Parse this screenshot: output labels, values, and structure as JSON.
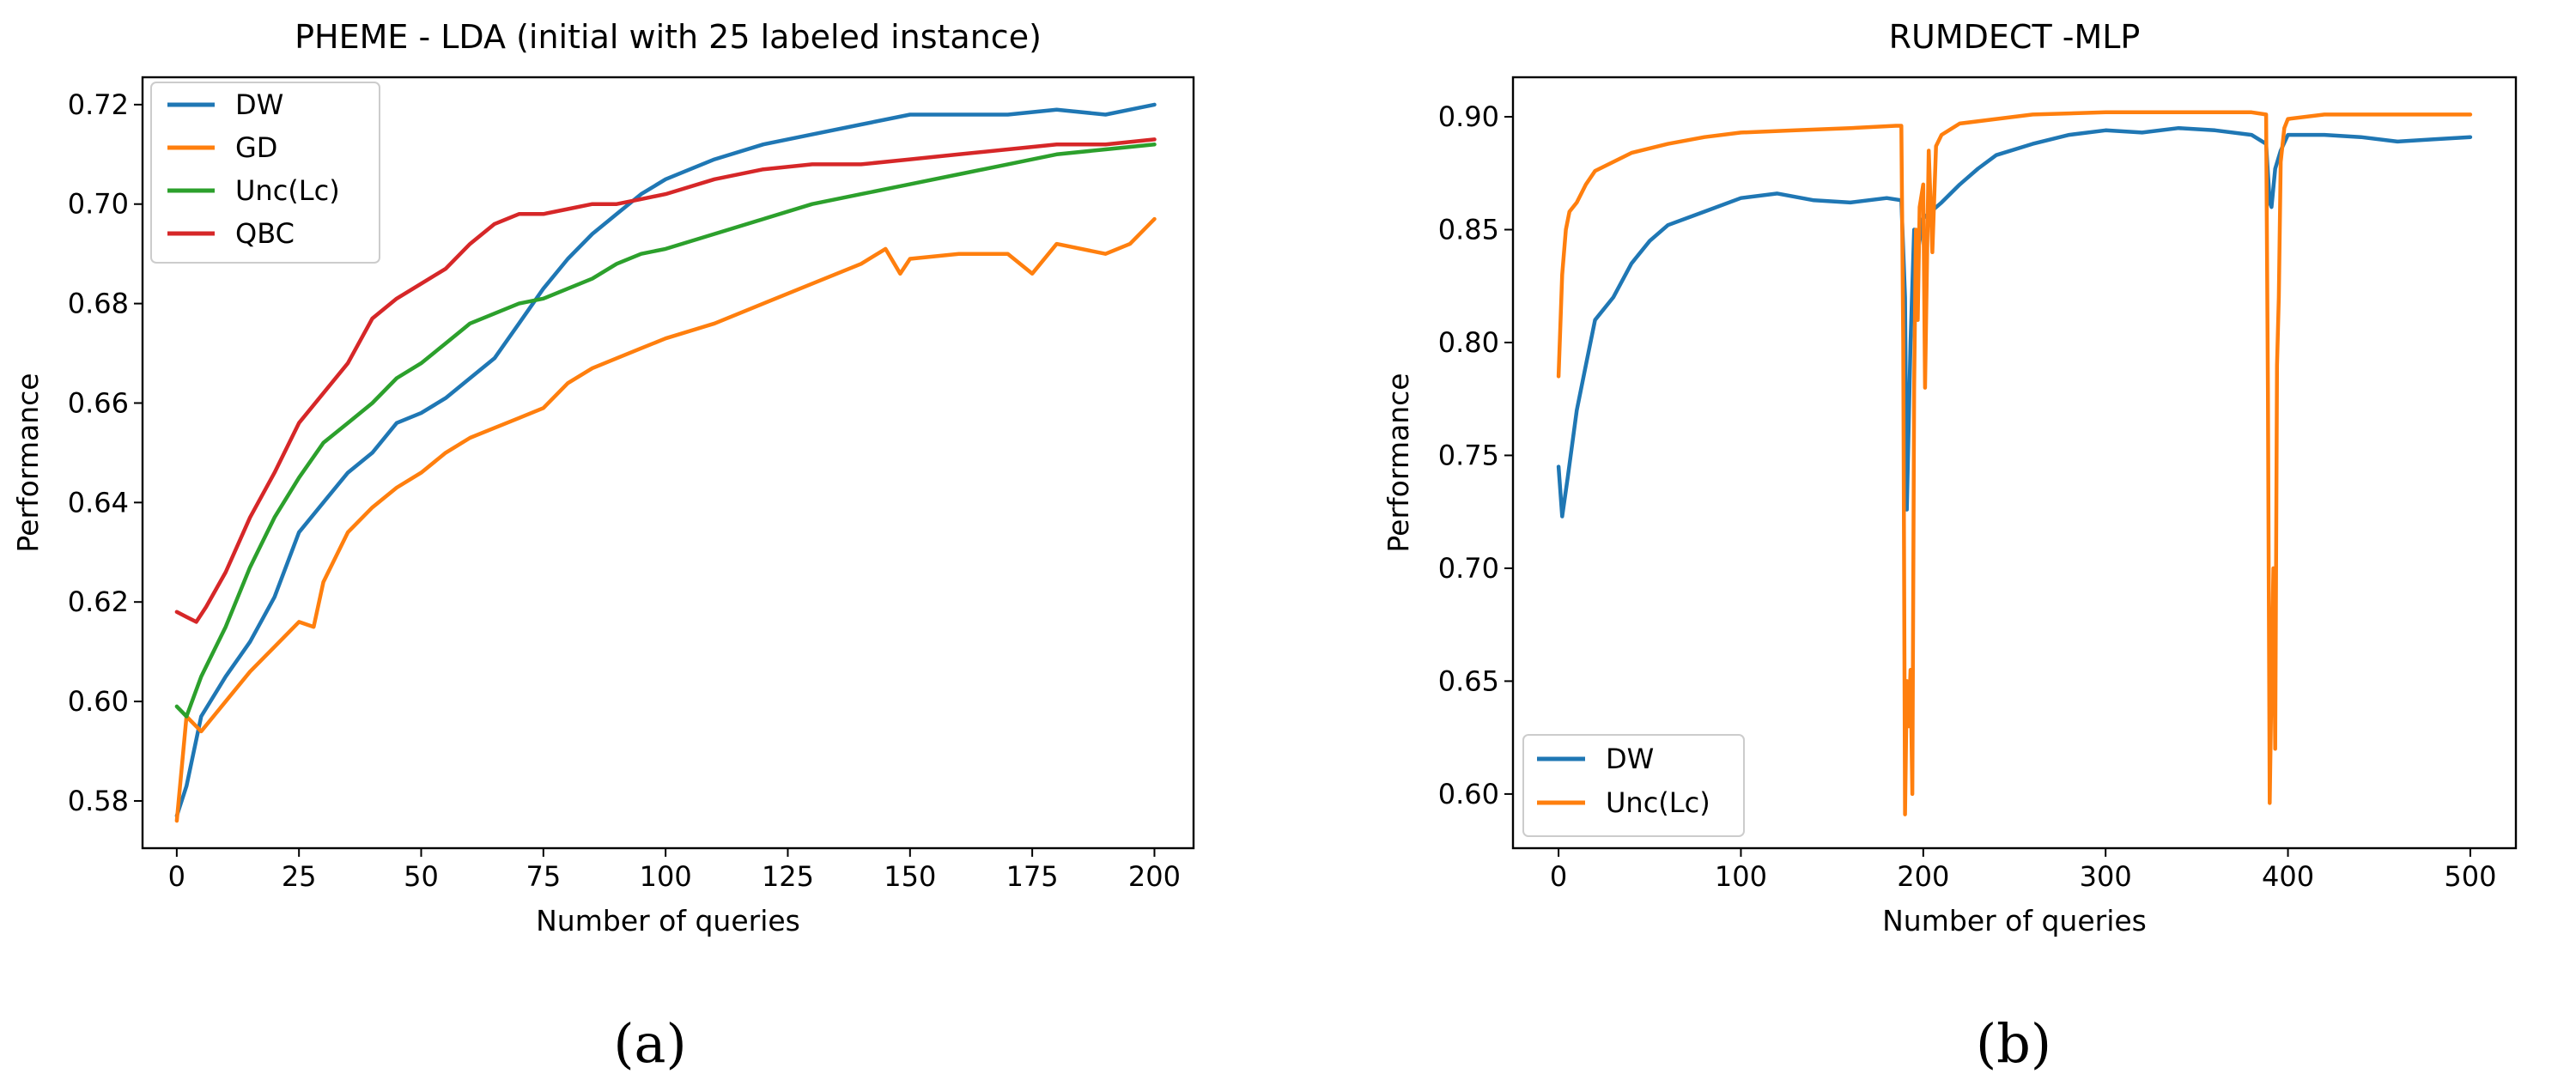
{
  "chart_data": [
    {
      "type": "line",
      "panel_label": "(a)",
      "title": "PHEME - LDA (initial with 25 labeled instance)",
      "xlabel": "Number of queries",
      "ylabel": "Performance",
      "xlim": [
        -7,
        208
      ],
      "ylim": [
        0.5705,
        0.7255
      ],
      "xticks": [
        0,
        25,
        50,
        75,
        100,
        125,
        150,
        175,
        200
      ],
      "xtick_labels": [
        "0",
        "25",
        "50",
        "75",
        "100",
        "125",
        "150",
        "175",
        "200"
      ],
      "yticks": [
        0.58,
        0.6,
        0.62,
        0.64,
        0.66,
        0.68,
        0.7,
        0.72
      ],
      "ytick_labels": [
        "0.58",
        "0.60",
        "0.62",
        "0.64",
        "0.66",
        "0.68",
        "0.70",
        "0.72"
      ],
      "legend_position": "upper-left",
      "series": [
        {
          "name": "DW",
          "color": "#1f77b4",
          "x": [
            0,
            2,
            5,
            10,
            15,
            20,
            25,
            30,
            35,
            40,
            45,
            50,
            55,
            60,
            65,
            70,
            75,
            80,
            85,
            90,
            95,
            100,
            105,
            110,
            120,
            130,
            140,
            150,
            160,
            170,
            180,
            190,
            200
          ],
          "y": [
            0.577,
            0.583,
            0.597,
            0.605,
            0.612,
            0.621,
            0.634,
            0.64,
            0.646,
            0.65,
            0.656,
            0.658,
            0.661,
            0.665,
            0.669,
            0.676,
            0.683,
            0.689,
            0.694,
            0.698,
            0.702,
            0.705,
            0.707,
            0.709,
            0.712,
            0.714,
            0.716,
            0.718,
            0.718,
            0.718,
            0.719,
            0.718,
            0.72
          ]
        },
        {
          "name": "GD",
          "color": "#ff7f0e",
          "x": [
            0,
            2,
            5,
            10,
            15,
            20,
            25,
            28,
            30,
            35,
            40,
            45,
            50,
            55,
            60,
            65,
            70,
            75,
            80,
            85,
            90,
            95,
            100,
            110,
            120,
            130,
            140,
            145,
            148,
            150,
            160,
            170,
            175,
            180,
            190,
            195,
            200
          ],
          "y": [
            0.576,
            0.597,
            0.594,
            0.6,
            0.606,
            0.611,
            0.616,
            0.615,
            0.624,
            0.634,
            0.639,
            0.643,
            0.646,
            0.65,
            0.653,
            0.655,
            0.657,
            0.659,
            0.664,
            0.667,
            0.669,
            0.671,
            0.673,
            0.676,
            0.68,
            0.684,
            0.688,
            0.691,
            0.686,
            0.689,
            0.69,
            0.69,
            0.686,
            0.692,
            0.69,
            0.692,
            0.697
          ]
        },
        {
          "name": "Unc(Lc)",
          "color": "#2ca02c",
          "x": [
            0,
            2,
            5,
            10,
            15,
            20,
            25,
            30,
            35,
            40,
            45,
            50,
            55,
            60,
            65,
            70,
            75,
            80,
            85,
            90,
            95,
            100,
            110,
            120,
            130,
            140,
            150,
            160,
            170,
            180,
            190,
            200
          ],
          "y": [
            0.599,
            0.597,
            0.605,
            0.615,
            0.627,
            0.637,
            0.645,
            0.652,
            0.656,
            0.66,
            0.665,
            0.668,
            0.672,
            0.676,
            0.678,
            0.68,
            0.681,
            0.683,
            0.685,
            0.688,
            0.69,
            0.691,
            0.694,
            0.697,
            0.7,
            0.702,
            0.704,
            0.706,
            0.708,
            0.71,
            0.711,
            0.712
          ]
        },
        {
          "name": "QBC",
          "color": "#d62728",
          "x": [
            0,
            2,
            4,
            6,
            10,
            15,
            20,
            25,
            30,
            35,
            40,
            45,
            50,
            55,
            60,
            65,
            70,
            75,
            80,
            85,
            90,
            95,
            100,
            110,
            120,
            130,
            140,
            150,
            160,
            170,
            180,
            190,
            200
          ],
          "y": [
            0.618,
            0.617,
            0.616,
            0.619,
            0.626,
            0.637,
            0.646,
            0.656,
            0.662,
            0.668,
            0.677,
            0.681,
            0.684,
            0.687,
            0.692,
            0.696,
            0.698,
            0.698,
            0.699,
            0.7,
            0.7,
            0.701,
            0.702,
            0.705,
            0.707,
            0.708,
            0.708,
            0.709,
            0.71,
            0.711,
            0.712,
            0.712,
            0.713
          ]
        }
      ]
    },
    {
      "type": "line",
      "panel_label": "(b)",
      "title": "RUMDECT -MLP",
      "xlabel": "Number of queries",
      "ylabel": "Performance",
      "xlim": [
        -25,
        525
      ],
      "ylim": [
        0.576,
        0.9175
      ],
      "xticks": [
        0,
        100,
        200,
        300,
        400,
        500
      ],
      "xtick_labels": [
        "0",
        "100",
        "200",
        "300",
        "400",
        "500"
      ],
      "yticks": [
        0.6,
        0.65,
        0.7,
        0.75,
        0.8,
        0.85,
        0.9
      ],
      "ytick_labels": [
        "0.60",
        "0.65",
        "0.70",
        "0.75",
        "0.80",
        "0.85",
        "0.90"
      ],
      "legend_position": "lower-left",
      "series": [
        {
          "name": "DW",
          "color": "#1f77b4",
          "x": [
            0,
            2,
            5,
            10,
            15,
            20,
            30,
            40,
            50,
            60,
            80,
            100,
            120,
            140,
            160,
            180,
            188,
            190,
            191,
            193,
            195,
            197,
            200,
            210,
            220,
            230,
            240,
            260,
            280,
            300,
            320,
            340,
            360,
            380,
            388,
            390,
            391,
            393,
            396,
            400,
            420,
            440,
            460,
            480,
            500
          ],
          "y": [
            0.745,
            0.723,
            0.74,
            0.77,
            0.79,
            0.81,
            0.82,
            0.835,
            0.845,
            0.852,
            0.858,
            0.864,
            0.866,
            0.863,
            0.862,
            0.864,
            0.863,
            0.82,
            0.726,
            0.8,
            0.85,
            0.84,
            0.855,
            0.862,
            0.87,
            0.877,
            0.883,
            0.888,
            0.892,
            0.894,
            0.893,
            0.895,
            0.894,
            0.892,
            0.888,
            0.862,
            0.86,
            0.877,
            0.885,
            0.892,
            0.892,
            0.891,
            0.889,
            0.89,
            0.891
          ]
        },
        {
          "name": "Unc(Lc)",
          "color": "#ff7f0e",
          "x": [
            0,
            2,
            4,
            6,
            10,
            15,
            20,
            30,
            40,
            60,
            80,
            100,
            130,
            160,
            185,
            188,
            189,
            190,
            191,
            192,
            193,
            194,
            195,
            196,
            197,
            198,
            200,
            201,
            203,
            205,
            207,
            210,
            220,
            240,
            260,
            300,
            340,
            380,
            388,
            389,
            390,
            391,
            392,
            393,
            394,
            395,
            396,
            398,
            400,
            420,
            460,
            500
          ],
          "y": [
            0.785,
            0.83,
            0.85,
            0.858,
            0.862,
            0.87,
            0.876,
            0.88,
            0.884,
            0.888,
            0.891,
            0.893,
            0.894,
            0.895,
            0.896,
            0.896,
            0.8,
            0.591,
            0.65,
            0.63,
            0.655,
            0.6,
            0.78,
            0.85,
            0.81,
            0.86,
            0.87,
            0.78,
            0.885,
            0.84,
            0.887,
            0.892,
            0.897,
            0.899,
            0.901,
            0.902,
            0.902,
            0.902,
            0.901,
            0.78,
            0.596,
            0.65,
            0.7,
            0.62,
            0.79,
            0.82,
            0.88,
            0.895,
            0.899,
            0.901,
            0.901,
            0.901
          ]
        }
      ]
    }
  ]
}
